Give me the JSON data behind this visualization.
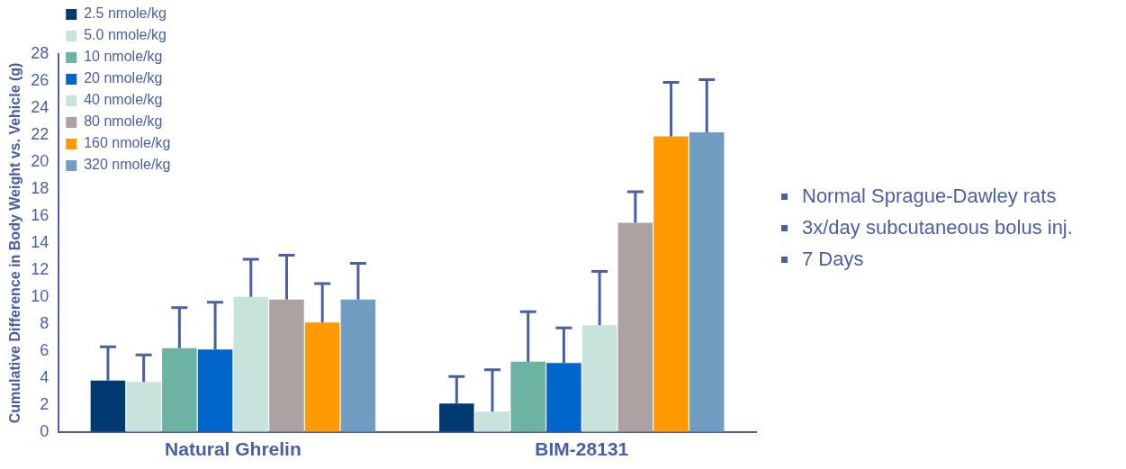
{
  "chart_data": {
    "type": "bar",
    "ylabel": "Cumulative Difference in Body Weight vs. Vehicle (g)",
    "categories": [
      "Natural Ghrelin",
      "BIM-28131"
    ],
    "series": [
      {
        "name": "2.5 nmole/kg",
        "color": "#003a70",
        "values": [
          3.8,
          2.1
        ],
        "errors": [
          [
            3.8,
            6.3
          ],
          [
            2.1,
            4.1
          ]
        ]
      },
      {
        "name": "5.0 nmole/kg",
        "color": "#c8e3dc",
        "values": [
          3.7,
          1.5
        ],
        "errors": [
          [
            3.7,
            5.7
          ],
          [
            1.5,
            4.6
          ]
        ]
      },
      {
        "name": "10 nmole/kg",
        "color": "#6db3a2",
        "values": [
          6.2,
          5.2
        ],
        "errors": [
          [
            6.2,
            9.2
          ],
          [
            5.2,
            8.9
          ]
        ]
      },
      {
        "name": "20 nmole/kg",
        "color": "#0066cc",
        "values": [
          6.1,
          5.1
        ],
        "errors": [
          [
            6.1,
            9.6
          ],
          [
            5.1,
            7.7
          ]
        ]
      },
      {
        "name": "40 nmole/kg",
        "color": "#c8e3dc",
        "values": [
          10.0,
          7.9
        ],
        "errors": [
          [
            10.0,
            12.8
          ],
          [
            7.9,
            11.9
          ]
        ]
      },
      {
        "name": "80 nmole/kg",
        "color": "#ada1a1",
        "values": [
          9.8,
          15.5
        ],
        "errors": [
          [
            9.8,
            13.1
          ],
          [
            15.5,
            17.8
          ]
        ]
      },
      {
        "name": "160 nmole/kg",
        "color": "#ff9900",
        "values": [
          8.1,
          21.9
        ],
        "errors": [
          [
            8.1,
            11.0
          ],
          [
            21.9,
            25.9
          ]
        ]
      },
      {
        "name": "320 nmole/kg",
        "color": "#719dc3",
        "values": [
          9.8,
          22.2
        ],
        "errors": [
          [
            9.8,
            12.5
          ],
          [
            22.2,
            26.1
          ]
        ]
      }
    ],
    "ylim": [
      0,
      28
    ],
    "yticks": [
      0,
      2,
      4,
      6,
      8,
      10,
      12,
      14,
      16,
      18,
      20,
      22,
      24,
      26,
      28
    ],
    "grid": false,
    "legend": "top left",
    "annotations": [
      "Normal Sprague-Dawley rats",
      "3x/day subcutaneous bolus inj.",
      "7 Days"
    ]
  }
}
